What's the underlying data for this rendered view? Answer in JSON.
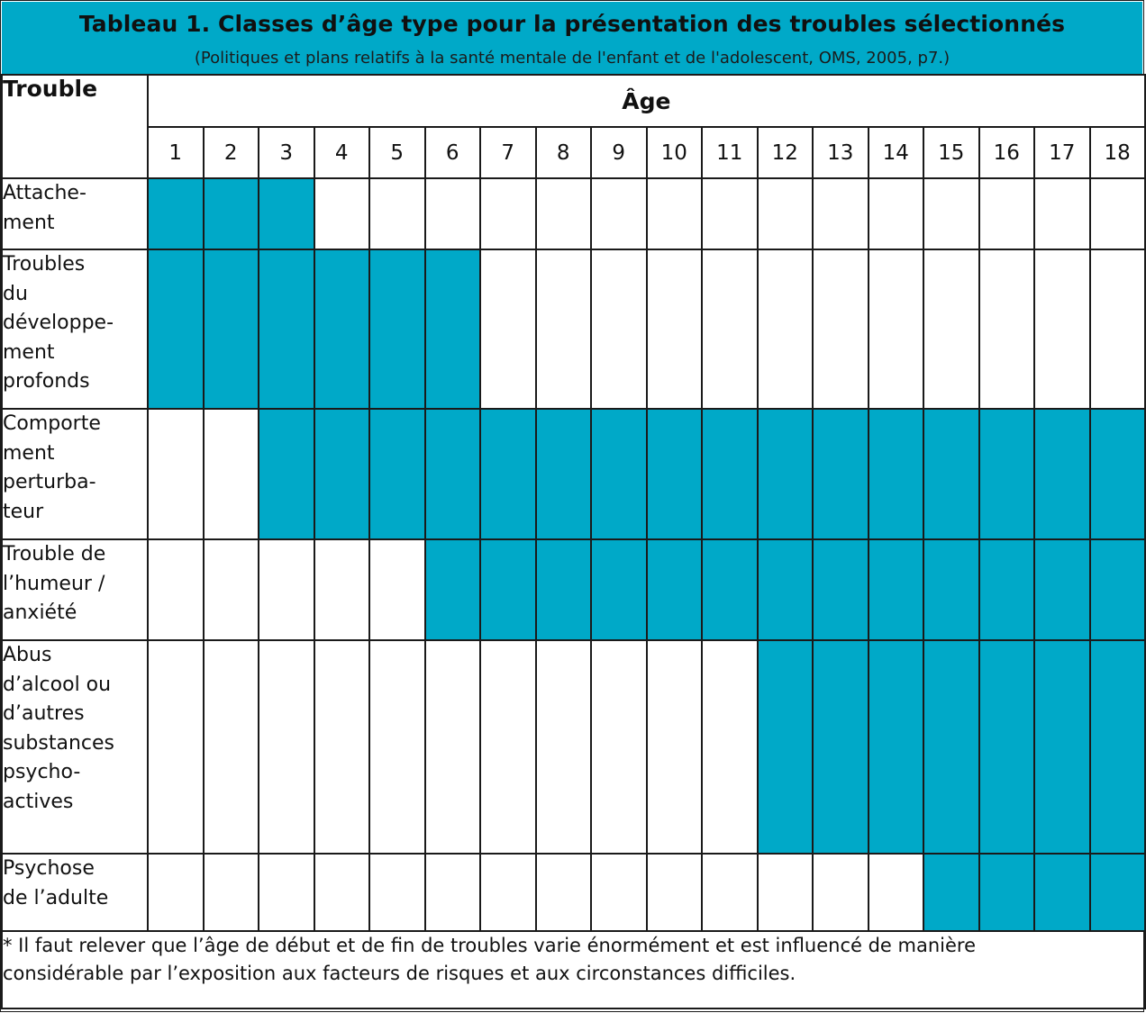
{
  "header": {
    "title": "Tableau 1. Classes d’âge type pour la présentation des troubles sélectionnés",
    "subtitle": "(Politiques et plans relatifs à la santé mentale de l'enfant et de l'adolescent, OMS, 2005, p7.)",
    "band_color": "#00a9c8"
  },
  "table": {
    "trouble_header": "Trouble",
    "age_header": "Âge",
    "ages": [
      "1",
      "2",
      "3",
      "4",
      "5",
      "6",
      "7",
      "8",
      "9",
      "10",
      "11",
      "12",
      "13",
      "14",
      "15",
      "16",
      "17",
      "18"
    ],
    "fill_color": "#00a9c8",
    "rows": [
      {
        "label_lines": [
          "Attache-",
          "ment"
        ],
        "age_from": 1,
        "age_to": 3
      },
      {
        "label_lines": [
          "Troubles",
          "du",
          "développe-",
          "ment",
          "profonds"
        ],
        "age_from": 1,
        "age_to": 6
      },
      {
        "label_lines": [
          "Comporte",
          "ment",
          "perturba-",
          "teur"
        ],
        "age_from": 3,
        "age_to": 18
      },
      {
        "label_lines": [
          "Trouble de",
          "l’humeur /",
          "anxiété"
        ],
        "age_from": 6,
        "age_to": 18
      },
      {
        "label_lines": [
          "Abus",
          "d’alcool ou",
          "d’autres",
          "substances",
          "psycho-",
          "actives"
        ],
        "age_from": 12,
        "age_to": 18
      },
      {
        "label_lines": [
          "Psychose",
          "de l’adulte"
        ],
        "age_from": 15,
        "age_to": 18
      }
    ],
    "footnote_lines": [
      "* Il faut relever que l’âge de début et de fin de troubles varie énormément et est influencé de manière",
      "considérable par l’exposition aux facteurs de risques et aux circonstances difficiles."
    ]
  }
}
